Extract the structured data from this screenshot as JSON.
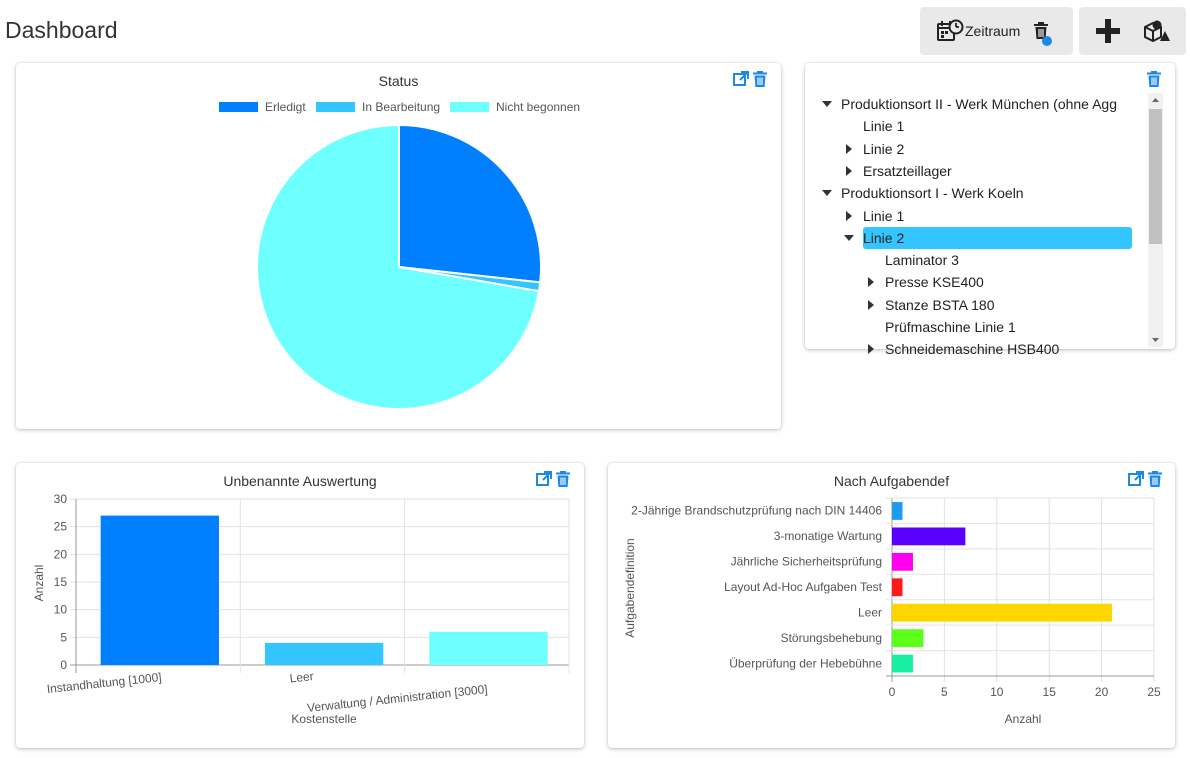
{
  "header": {
    "title": "Dashboard"
  },
  "toolbar": {
    "zeitraum_label": "Zeitraum"
  },
  "colors": {
    "erledigt": "#0080ff",
    "in_bearbeitung": "#33c5ff",
    "nicht_begonnen": "#6effff",
    "selected": "#33c5ff",
    "icon_blue": "#1e88e5"
  },
  "tree": {
    "items": [
      {
        "label": "Produktionsort II - Werk München (ohne Agg",
        "level": 0,
        "arrow": "down"
      },
      {
        "label": "Linie 1",
        "level": 1,
        "arrow": "none"
      },
      {
        "label": "Linie 2",
        "level": 1,
        "arrow": "right"
      },
      {
        "label": "Ersatzteillager",
        "level": 1,
        "arrow": "right"
      },
      {
        "label": "Produktionsort I - Werk Koeln",
        "level": 0,
        "arrow": "down"
      },
      {
        "label": "Linie 1",
        "level": 1,
        "arrow": "right"
      },
      {
        "label": "Linie 2",
        "level": 1,
        "arrow": "down",
        "selected": true
      },
      {
        "label": "Laminator 3",
        "level": 2,
        "arrow": "none"
      },
      {
        "label": "Presse KSE400",
        "level": 2,
        "arrow": "right"
      },
      {
        "label": "Stanze BSTA 180",
        "level": 2,
        "arrow": "right"
      },
      {
        "label": "Prüfmaschine Linie 1",
        "level": 2,
        "arrow": "none"
      },
      {
        "label": "Schneidemaschine HSB400",
        "level": 2,
        "arrow": "right"
      }
    ]
  },
  "chart_data": [
    {
      "type": "pie",
      "title": "Status",
      "legend_position": "top",
      "categories": [
        "Erledigt",
        "In Bearbeitung",
        "Nicht begonnen"
      ],
      "values": [
        27,
        1,
        73
      ],
      "colors": [
        "#0080ff",
        "#33c5ff",
        "#6effff"
      ]
    },
    {
      "type": "bar",
      "title": "Unbenannte Auswertung",
      "xlabel": "Kostenstelle",
      "ylabel": "Anzahl",
      "categories": [
        "Instandhaltung [1000]",
        "Leer",
        "Verwaltung / Administration [3000]"
      ],
      "values": [
        27,
        4,
        6
      ],
      "colors": [
        "#0080ff",
        "#33c5ff",
        "#6effff"
      ],
      "yticks": [
        "0",
        "5",
        "10",
        "15",
        "20",
        "25",
        "30"
      ],
      "ylim": [
        0,
        30
      ],
      "grid": true
    },
    {
      "type": "bar",
      "orientation": "horizontal",
      "title": "Nach Aufgabendef",
      "xlabel": "Anzahl",
      "ylabel": "Aufgabendefinition",
      "categories": [
        "2-Jährige Brandschutzprüfung nach DIN 14406",
        "3-monatige Wartung",
        "Jährliche Sicherheitsprüfung",
        "Layout Ad-Hoc Aufgaben Test",
        "Leer",
        "Störungsbehebung",
        "Überprüfung der Hebebühne"
      ],
      "values": [
        1,
        7,
        2,
        1,
        21,
        3,
        2
      ],
      "colors": [
        "#1e9bf0",
        "#5b00ff",
        "#ff00ee",
        "#ff1a1a",
        "#ffd500",
        "#5cff1a",
        "#1aeea0"
      ],
      "xticks": [
        "0",
        "5",
        "10",
        "15",
        "20",
        "25"
      ],
      "xlim": [
        0,
        25
      ],
      "grid": true
    }
  ]
}
